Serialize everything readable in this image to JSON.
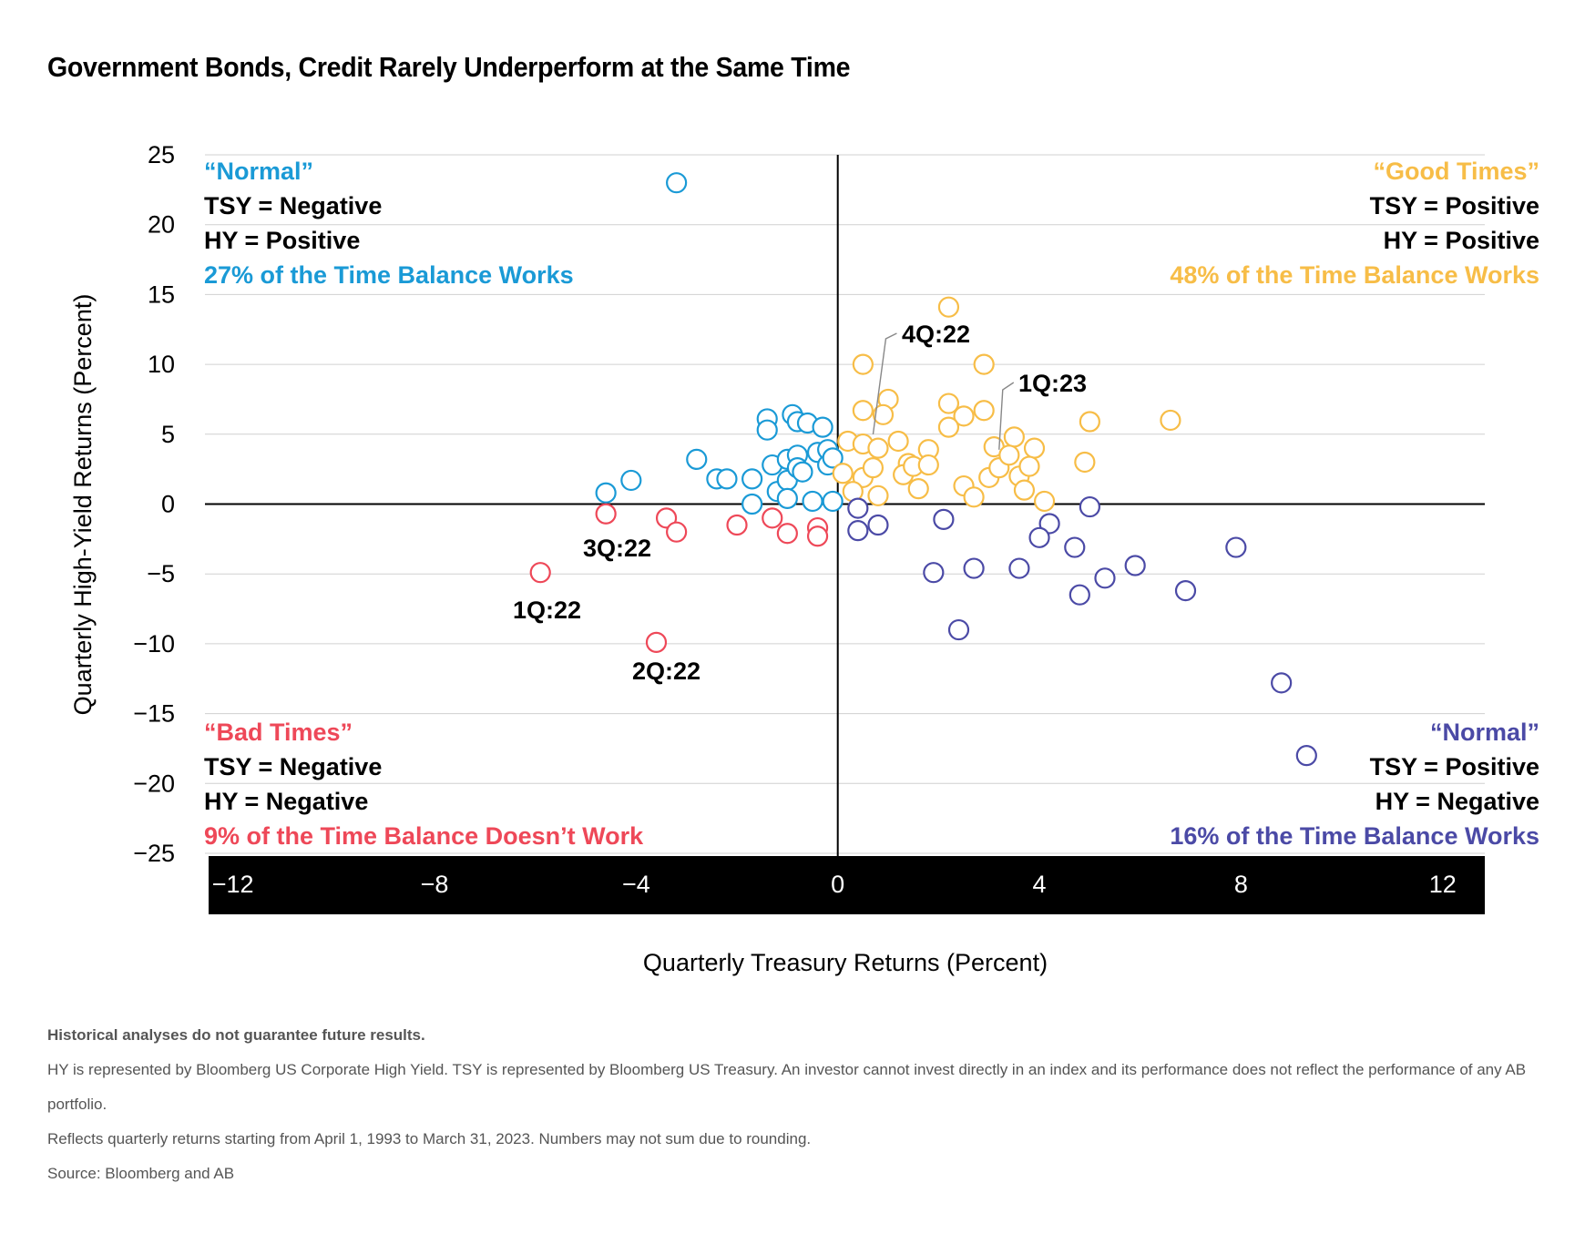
{
  "title": "Government Bonds, Credit Rarely Underperform at the Same Time",
  "chart_data": {
    "type": "scatter",
    "xlabel": "Quarterly Treasury Returns (Percent)",
    "ylabel": "Quarterly High-Yield Returns (Percent)",
    "xlim": [
      -12.5,
      12.8
    ],
    "ylim": [
      -25,
      25
    ],
    "x_ticks": [
      -12,
      -8,
      -4,
      0,
      4,
      8,
      12
    ],
    "x_tick_labels": [
      "−12",
      "−8",
      "−4",
      "0",
      "4",
      "8",
      "12"
    ],
    "y_ticks": [
      25,
      20,
      15,
      10,
      5,
      0,
      -5,
      -10,
      -15,
      -20,
      -25
    ],
    "y_tick_labels": [
      "25",
      "20",
      "15",
      "10",
      "5",
      "0",
      "−5",
      "−10",
      "−15",
      "−20",
      "−25"
    ],
    "grid": "horizontal",
    "colors": {
      "normal_neg_tsy": "#1a9ad6",
      "good_times": "#f7bd47",
      "bad_times": "#ee4858",
      "normal_neg_hy": "#4b4aa6"
    },
    "quadrants": {
      "top_left": {
        "heading": "“Normal”",
        "line1": "TSY = Negative",
        "line2": "HY = Positive",
        "share": "27% of the Time Balance Works"
      },
      "top_right": {
        "heading": "“Good Times”",
        "line1": "TSY = Positive",
        "line2": "HY = Positive",
        "share": "48% of the Time Balance Works"
      },
      "bottom_left": {
        "heading": "“Bad Times”",
        "line1": "TSY = Negative",
        "line2": "HY = Negative",
        "share": "9% of the Time Balance Doesn’t Work"
      },
      "bottom_right": {
        "heading": "“Normal”",
        "line1": "TSY = Positive",
        "line2": "HY = Negative",
        "share": "16% of the Time Balance Works"
      }
    },
    "annotations": [
      {
        "text": "4Q:22",
        "x": 0.7,
        "y": 4.6
      },
      {
        "text": "1Q:23",
        "x": 3.2,
        "y": 3.5
      },
      {
        "text": "3Q:22",
        "x": -4.6,
        "y": -0.7
      },
      {
        "text": "1Q:22",
        "x": -5.9,
        "y": -4.9
      },
      {
        "text": "2Q:22",
        "x": -3.6,
        "y": -9.9
      }
    ],
    "series": [
      {
        "color_key": "normal_neg_tsy",
        "points": [
          [
            -3.2,
            23.0
          ],
          [
            -4.6,
            0.8
          ],
          [
            -4.1,
            1.7
          ],
          [
            -2.8,
            3.2
          ],
          [
            -2.4,
            1.8
          ],
          [
            -2.2,
            1.8
          ],
          [
            -1.7,
            1.8
          ],
          [
            -1.7,
            0.0
          ],
          [
            -1.4,
            6.1
          ],
          [
            -1.4,
            5.3
          ],
          [
            -1.3,
            2.8
          ],
          [
            -1.2,
            0.9
          ],
          [
            -1.0,
            3.2
          ],
          [
            -1.0,
            1.7
          ],
          [
            -1.0,
            0.4
          ],
          [
            -0.9,
            6.4
          ],
          [
            -0.8,
            5.9
          ],
          [
            -0.8,
            3.5
          ],
          [
            -0.8,
            2.6
          ],
          [
            -0.7,
            2.3
          ],
          [
            -0.6,
            5.8
          ],
          [
            -0.5,
            0.2
          ],
          [
            -0.4,
            3.7
          ],
          [
            -0.3,
            5.5
          ],
          [
            -0.2,
            3.9
          ],
          [
            -0.2,
            2.8
          ],
          [
            -0.1,
            3.3
          ],
          [
            -0.1,
            0.2
          ]
        ]
      },
      {
        "color_key": "good_times",
        "points": [
          [
            2.2,
            14.1
          ],
          [
            0.5,
            10.0
          ],
          [
            2.9,
            10.0
          ],
          [
            1.0,
            7.5
          ],
          [
            6.6,
            6.0
          ],
          [
            0.5,
            6.7
          ],
          [
            0.9,
            6.4
          ],
          [
            2.2,
            7.2
          ],
          [
            2.5,
            6.3
          ],
          [
            2.9,
            6.7
          ],
          [
            5.0,
            5.9
          ],
          [
            2.2,
            5.5
          ],
          [
            0.2,
            4.5
          ],
          [
            0.5,
            4.3
          ],
          [
            0.8,
            4.0
          ],
          [
            1.2,
            4.5
          ],
          [
            1.4,
            2.9
          ],
          [
            1.8,
            3.9
          ],
          [
            3.1,
            4.1
          ],
          [
            3.5,
            4.8
          ],
          [
            3.9,
            4.0
          ],
          [
            4.9,
            3.0
          ],
          [
            0.1,
            2.2
          ],
          [
            0.5,
            1.9
          ],
          [
            0.7,
            2.6
          ],
          [
            1.3,
            2.1
          ],
          [
            1.5,
            2.7
          ],
          [
            1.8,
            2.8
          ],
          [
            2.5,
            1.3
          ],
          [
            3.0,
            1.9
          ],
          [
            3.2,
            2.6
          ],
          [
            3.4,
            3.5
          ],
          [
            3.6,
            2.0
          ],
          [
            3.8,
            2.7
          ],
          [
            0.3,
            0.9
          ],
          [
            0.8,
            0.6
          ],
          [
            1.6,
            1.1
          ],
          [
            2.7,
            0.5
          ],
          [
            3.7,
            1.0
          ],
          [
            4.1,
            0.2
          ]
        ]
      },
      {
        "color_key": "bad_times",
        "points": [
          [
            -4.6,
            -0.7
          ],
          [
            -3.4,
            -1.0
          ],
          [
            -3.2,
            -2.0
          ],
          [
            -5.9,
            -4.9
          ],
          [
            -3.6,
            -9.9
          ],
          [
            -2.0,
            -1.5
          ],
          [
            -1.3,
            -1.0
          ],
          [
            -1.0,
            -2.1
          ],
          [
            -0.4,
            -1.7
          ],
          [
            -0.4,
            -2.3
          ]
        ]
      },
      {
        "color_key": "normal_neg_hy",
        "points": [
          [
            0.4,
            -0.3
          ],
          [
            0.4,
            -1.9
          ],
          [
            0.8,
            -1.5
          ],
          [
            2.1,
            -1.1
          ],
          [
            5.0,
            -0.2
          ],
          [
            4.2,
            -1.4
          ],
          [
            4.0,
            -2.4
          ],
          [
            4.7,
            -3.1
          ],
          [
            1.9,
            -4.9
          ],
          [
            2.7,
            -4.6
          ],
          [
            3.6,
            -4.6
          ],
          [
            4.8,
            -6.5
          ],
          [
            5.3,
            -5.3
          ],
          [
            5.9,
            -4.4
          ],
          [
            6.9,
            -6.2
          ],
          [
            7.9,
            -3.1
          ],
          [
            2.4,
            -9.0
          ],
          [
            8.8,
            -12.8
          ],
          [
            9.3,
            -18.0
          ]
        ]
      }
    ]
  },
  "notes": {
    "disclaimer": "Historical analyses do not guarantee future results.",
    "line1": "HY is represented by Bloomberg US Corporate High Yield. TSY is represented by Bloomberg US Treasury. An investor cannot invest directly in an index and its performance does not reflect the performance of any AB portfolio.",
    "line2": "Reflects quarterly returns starting from April 1, 1993 to March 31, 2023. Numbers may not sum due to rounding.",
    "source": "Source: Bloomberg and AB"
  }
}
